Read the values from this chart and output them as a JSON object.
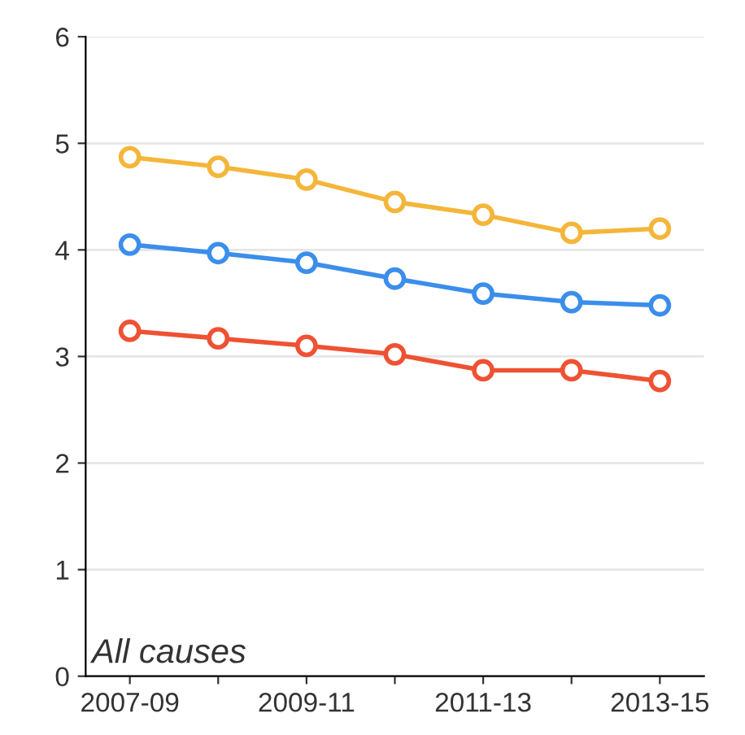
{
  "chart_data": {
    "type": "line",
    "categories": [
      "2007-09",
      null,
      "2009-11",
      null,
      "2011-13",
      null,
      "2013-15"
    ],
    "series": [
      {
        "color": "#f4b63a",
        "values": [
          4.87,
          4.78,
          4.66,
          4.45,
          4.33,
          4.16,
          4.2
        ]
      },
      {
        "color": "#3b8eea",
        "values": [
          4.05,
          3.97,
          3.88,
          3.73,
          3.59,
          3.51,
          3.48
        ]
      },
      {
        "color": "#ee5233",
        "values": [
          3.24,
          3.17,
          3.1,
          3.02,
          2.87,
          2.87,
          2.77
        ]
      }
    ],
    "ylim": [
      0,
      6
    ],
    "yticks": [
      0,
      1,
      2,
      3,
      4,
      5,
      6
    ],
    "grid": "y",
    "marker": "circle",
    "line_style": "solid",
    "legend": false,
    "annotations": [
      "All causes"
    ]
  }
}
